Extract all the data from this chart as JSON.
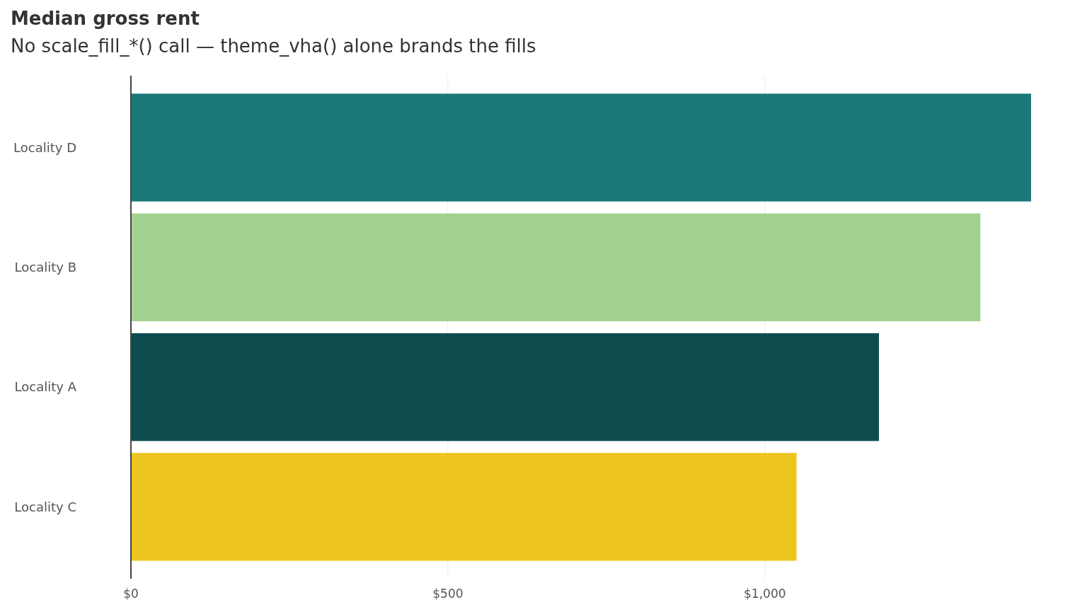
{
  "chart_data": {
    "type": "bar",
    "orientation": "horizontal",
    "title": "Median gross rent",
    "subtitle": "No scale_fill_*() call — theme_vha() alone brands the fills",
    "categories": [
      "Locality D",
      "Locality B",
      "Locality A",
      "Locality C"
    ],
    "values": [
      1420,
      1340,
      1180,
      1050
    ],
    "colors": [
      "#1b7879",
      "#a1d290",
      "#0d4d50",
      "#ecc51f"
    ],
    "xlim": [
      0,
      1420
    ],
    "xticks": [
      {
        "value": 0,
        "label": "$0"
      },
      {
        "value": 500,
        "label": "$500"
      },
      {
        "value": 1000,
        "label": "$1,000"
      }
    ],
    "grid": "x"
  }
}
